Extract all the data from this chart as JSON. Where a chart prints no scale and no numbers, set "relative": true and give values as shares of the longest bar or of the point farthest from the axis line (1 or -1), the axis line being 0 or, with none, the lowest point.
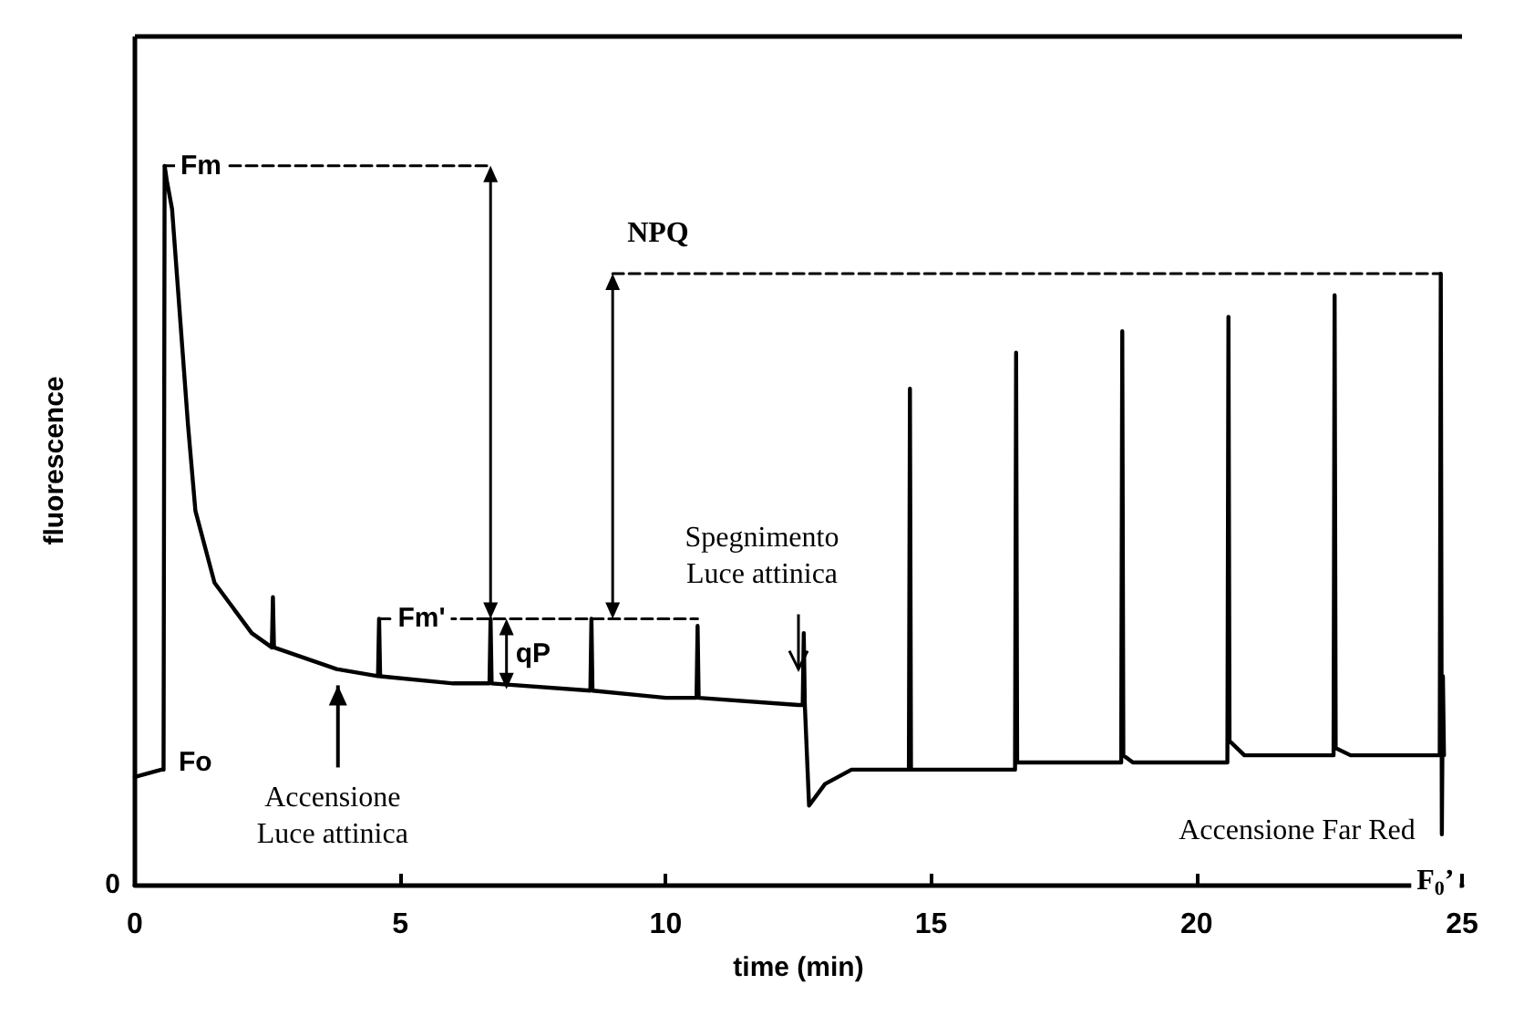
{
  "chart_data": {
    "type": "line",
    "relative": true,
    "xlabel": "time (min)",
    "ylabel": "fluorescence",
    "xlim": [
      0,
      25
    ],
    "xticks": [
      0,
      5,
      10,
      15,
      20,
      25
    ],
    "grid": false,
    "series": [
      {
        "color": "#000000",
        "x": [
          0,
          0.5,
          0.54,
          0.56,
          0.6,
          0.7,
          0.8,
          0.9,
          1.0,
          1.14,
          1.5,
          2.2,
          2.58,
          2.6,
          2.62,
          3.8,
          4.58,
          4.6,
          4.62,
          6.0,
          6.68,
          6.7,
          6.72,
          8.58,
          8.6,
          8.62,
          10.0,
          10.58,
          10.6,
          10.62,
          12.5,
          12.58,
          12.6,
          12.62,
          12.7,
          13.0,
          13.5,
          14.58,
          14.6,
          14.62,
          16.58,
          16.6,
          16.62,
          18.58,
          18.6,
          18.62,
          18.8,
          20.58,
          20.6,
          20.62,
          20.9,
          22.58,
          22.6,
          22.62,
          22.9,
          24.5,
          24.58,
          24.6,
          24.62,
          24.64,
          24.66
        ],
        "values": [
          0.15,
          0.16,
          0.16,
          1.0,
          0.98,
          0.94,
          0.84,
          0.74,
          0.64,
          0.52,
          0.42,
          0.35,
          0.33,
          0.4,
          0.33,
          0.3,
          0.29,
          0.37,
          0.29,
          0.28,
          0.28,
          0.37,
          0.28,
          0.27,
          0.37,
          0.27,
          0.26,
          0.26,
          0.36,
          0.26,
          0.25,
          0.25,
          0.35,
          0.25,
          0.11,
          0.14,
          0.16,
          0.16,
          0.69,
          0.16,
          0.16,
          0.74,
          0.17,
          0.17,
          0.77,
          0.18,
          0.17,
          0.17,
          0.79,
          0.2,
          0.18,
          0.18,
          0.82,
          0.19,
          0.18,
          0.18,
          0.18,
          0.85,
          0.07,
          0.29,
          0.18
        ]
      },
      {
        "color": "#000000",
        "line_style": "dashed",
        "x": [
          0.55,
          6.7
        ],
        "values": [
          1.0,
          1.0
        ]
      },
      {
        "color": "#000000",
        "line_style": "dashed",
        "x": [
          4.6,
          10.6
        ],
        "values": [
          0.37,
          0.37
        ]
      },
      {
        "color": "#000000",
        "line_style": "dashed",
        "x": [
          9,
          24.6
        ],
        "values": [
          0.85,
          0.85
        ]
      }
    ],
    "annotations": [
      {
        "text": "Fm",
        "x": 0.55,
        "y": 1.0
      },
      {
        "text": "Fo",
        "x": 0.55,
        "y": 0.16
      },
      {
        "text": "Fm'",
        "x": 5.4,
        "y": 0.37
      },
      "qP",
      {
        "text": "NPQ",
        "x": 9,
        "y": 0.85
      },
      {
        "text": "Spegnimento\nLuce attinica",
        "x": 12.5,
        "y": 0.3
      },
      "Accensione\nLuce attinica",
      {
        "text": "Accensione Far Red",
        "x": 24.6,
        "y": 0.07
      },
      "F$_{0}$’",
      "0"
    ]
  }
}
